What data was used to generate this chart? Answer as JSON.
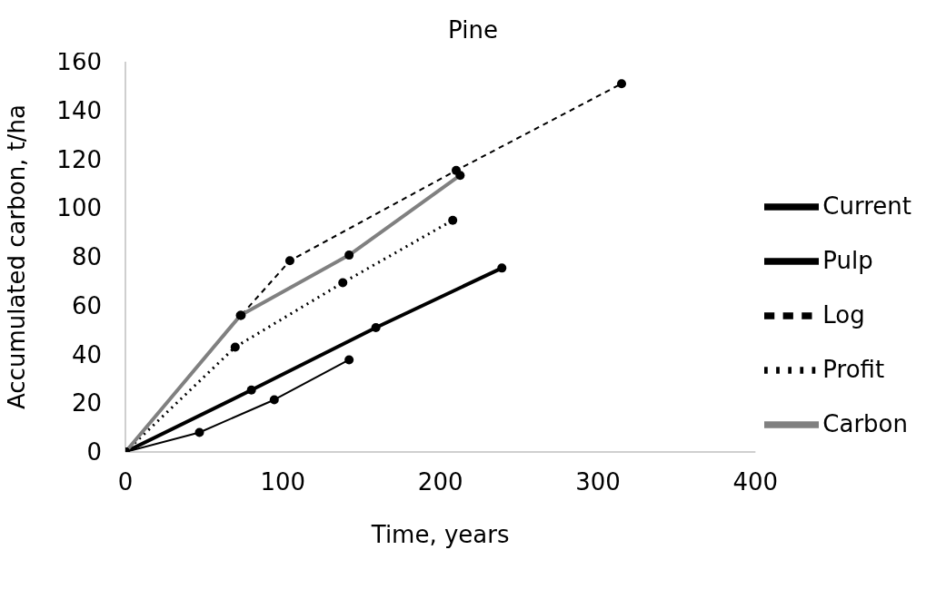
{
  "chart_data": {
    "type": "line",
    "title": "Pine",
    "xlabel": "Time, years",
    "ylabel": "Accumulated carbon, t/ha",
    "xlim": [
      0,
      400
    ],
    "xticks": [
      0,
      100,
      200,
      300,
      400
    ],
    "ylim": [
      0,
      160
    ],
    "yticks": [
      0,
      20,
      40,
      60,
      80,
      100,
      120,
      140,
      160
    ],
    "grid": false,
    "legend": "right",
    "marker": "circle",
    "series": [
      {
        "name": "Current",
        "color": "#000000",
        "line_style": "solid",
        "x": [
          0,
          80,
          159,
          239
        ],
        "values": [
          0,
          25.4,
          51,
          75.4
        ]
      },
      {
        "name": "Pulp",
        "color": "#000000",
        "line_style": "solid",
        "x": [
          0,
          47,
          94.5,
          142
        ],
        "values": [
          0,
          8,
          21.4,
          37.8
        ]
      },
      {
        "name": "Log",
        "color": "#000000",
        "line_style": "dashed",
        "x": [
          0,
          73.5,
          104.4,
          210,
          315
        ],
        "values": [
          0,
          56,
          78.4,
          115.4,
          151
        ]
      },
      {
        "name": "Profit",
        "color": "#000000",
        "line_style": "dotted",
        "x": [
          0,
          69.7,
          138,
          207.8
        ],
        "values": [
          0,
          43,
          69.4,
          95
        ]
      },
      {
        "name": "Carbon",
        "color": "#808080",
        "line_style": "solid",
        "x": [
          0,
          73,
          142,
          212.5
        ],
        "values": [
          0,
          56,
          80.7,
          113.4
        ]
      }
    ]
  }
}
